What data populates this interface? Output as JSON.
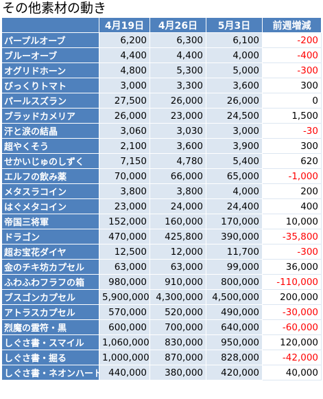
{
  "title": "その他素材の動き",
  "headers": [
    "",
    "4月19日",
    "4月26日",
    "5月3日",
    "前週増減"
  ],
  "rows": [
    {
      "name": "パープルオーブ",
      "v1": "6,200",
      "v2": "6,300",
      "v3": "6,100",
      "diff": "-200",
      "neg": true
    },
    {
      "name": "ブルーオーブ",
      "v1": "4,400",
      "v2": "4,400",
      "v3": "4,000",
      "diff": "-400",
      "neg": true
    },
    {
      "name": "オグリドホーン",
      "v1": "4,800",
      "v2": "5,300",
      "v3": "5,000",
      "diff": "-300",
      "neg": true
    },
    {
      "name": "びっくりトマト",
      "v1": "3,000",
      "v2": "3,300",
      "v3": "3,600",
      "diff": "300",
      "neg": false
    },
    {
      "name": "パールスズラン",
      "v1": "27,500",
      "v2": "26,000",
      "v3": "26,000",
      "diff": "0",
      "neg": false
    },
    {
      "name": "ブラッドカメリア",
      "v1": "26,000",
      "v2": "23,000",
      "v3": "24,500",
      "diff": "1,500",
      "neg": false
    },
    {
      "name": "汗と涙の結晶",
      "v1": "3,060",
      "v2": "3,030",
      "v3": "3,000",
      "diff": "-30",
      "neg": true
    },
    {
      "name": "超やくそう",
      "v1": "2,100",
      "v2": "3,600",
      "v3": "3,900",
      "diff": "300",
      "neg": false
    },
    {
      "name": "せかいじゅのしずく",
      "v1": "7,150",
      "v2": "4,780",
      "v3": "5,400",
      "diff": "620",
      "neg": false
    },
    {
      "name": "エルフの飲み薬",
      "v1": "70,000",
      "v2": "66,000",
      "v3": "65,000",
      "diff": "-1,000",
      "neg": true
    },
    {
      "name": "メタスラコイン",
      "v1": "3,800",
      "v2": "3,800",
      "v3": "4,000",
      "diff": "200",
      "neg": false
    },
    {
      "name": "はぐメタコイン",
      "v1": "23,000",
      "v2": "24,000",
      "v3": "24,400",
      "diff": "400",
      "neg": false
    },
    {
      "name": "帝国三将軍",
      "v1": "152,000",
      "v2": "160,000",
      "v3": "170,000",
      "diff": "10,000",
      "neg": false
    },
    {
      "name": "ドラゴン",
      "v1": "470,000",
      "v2": "425,800",
      "v3": "390,000",
      "diff": "-35,800",
      "neg": true
    },
    {
      "name": "超お宝花ダイヤ",
      "v1": "12,500",
      "v2": "12,000",
      "v3": "11,700",
      "diff": "-300",
      "neg": true
    },
    {
      "name": "金のチキ坊カプセル",
      "v1": "63,000",
      "v2": "63,000",
      "v3": "99,000",
      "diff": "36,000",
      "neg": false
    },
    {
      "name": "ふわふわフラフの箱",
      "v1": "980,000",
      "v2": "910,000",
      "v3": "800,000",
      "diff": "-110,000",
      "neg": true
    },
    {
      "name": "ブスゴンカプセル",
      "v1": "5,900,000",
      "v2": "4,300,000",
      "v3": "4,500,000",
      "diff": "200,000",
      "neg": false
    },
    {
      "name": "アトラスカプセル",
      "v1": "570,000",
      "v2": "520,000",
      "v3": "490,000",
      "diff": "-30,000",
      "neg": true
    },
    {
      "name": "烈魔の霊符・黒",
      "v1": "600,000",
      "v2": "700,000",
      "v3": "640,000",
      "diff": "-60,000",
      "neg": true
    },
    {
      "name": "しぐさ書・スマイル",
      "v1": "1,060,000",
      "v2": "830,000",
      "v3": "950,000",
      "diff": "120,000",
      "neg": false
    },
    {
      "name": "しぐさ書・掘る",
      "v1": "1,000,000",
      "v2": "870,000",
      "v3": "828,000",
      "diff": "-42,000",
      "neg": true
    },
    {
      "name": "しぐさ書・ネオンハート",
      "v1": "440,000",
      "v2": "380,000",
      "v3": "420,000",
      "diff": "40,000",
      "neg": false
    }
  ],
  "colors": {
    "header_bg": "#4f81bd",
    "value_bg": "#dce6f1",
    "negative": "#ff0000"
  }
}
